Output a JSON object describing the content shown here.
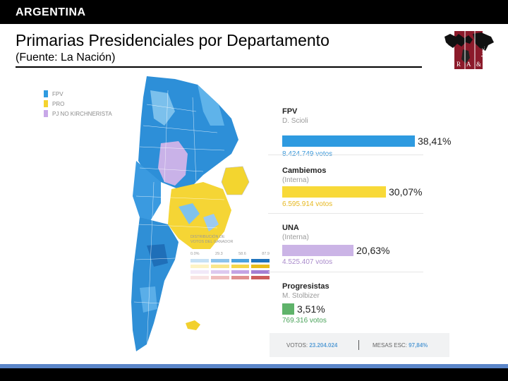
{
  "header": {
    "country": "ARGENTINA"
  },
  "slide": {
    "title": "Primarias Presidenciales por Departamento",
    "source": "(Fuente: La Nación)"
  },
  "logo": {
    "letters": [
      "R",
      "A",
      "&",
      "Asoc."
    ]
  },
  "legend": [
    {
      "label": "FPV",
      "color": "#2f9be0"
    },
    {
      "label": "PRO",
      "color": "#f4d32e"
    },
    {
      "label": "PJ NO KIRCHNERISTA",
      "color": "#c8a8e8"
    }
  ],
  "distribution": {
    "title_line1": "DISTRIBUCIÓN DE",
    "title_line2": "VOTOS DEL GANADOR",
    "ticks": [
      "0.0%",
      "29.3",
      "58.6",
      "87.9"
    ]
  },
  "results": [
    {
      "party": "FPV",
      "candidate": "D. Scioli",
      "percent": "38,41%",
      "votes": "8.424.749 votos",
      "color": "#2e9ae0",
      "votes_color": "#3a97d8",
      "share": 38.41
    },
    {
      "party": "Cambiemos",
      "candidate": "(Interna)",
      "percent": "30,07%",
      "votes": "6.595.914 votos",
      "color": "#f8d938",
      "votes_color": "#e6b820",
      "share": 30.07
    },
    {
      "party": "UNA",
      "candidate": "(Interna)",
      "percent": "20,63%",
      "votes": "4.525.407 votos",
      "color": "#cbb4e6",
      "votes_color": "#a98acb",
      "share": 20.63
    },
    {
      "party": "Progresistas",
      "candidate": "M. Stolbizer",
      "percent": "3,51%",
      "votes": "769.316 votos",
      "color": "#5fb36a",
      "votes_color": "#4aa35a",
      "share": 3.51
    }
  ],
  "footer": {
    "votos_label": "VOTOS:",
    "votos_value": "23.204.024",
    "mesas_label": "MESAS ESC:",
    "mesas_value": "97,84%"
  }
}
